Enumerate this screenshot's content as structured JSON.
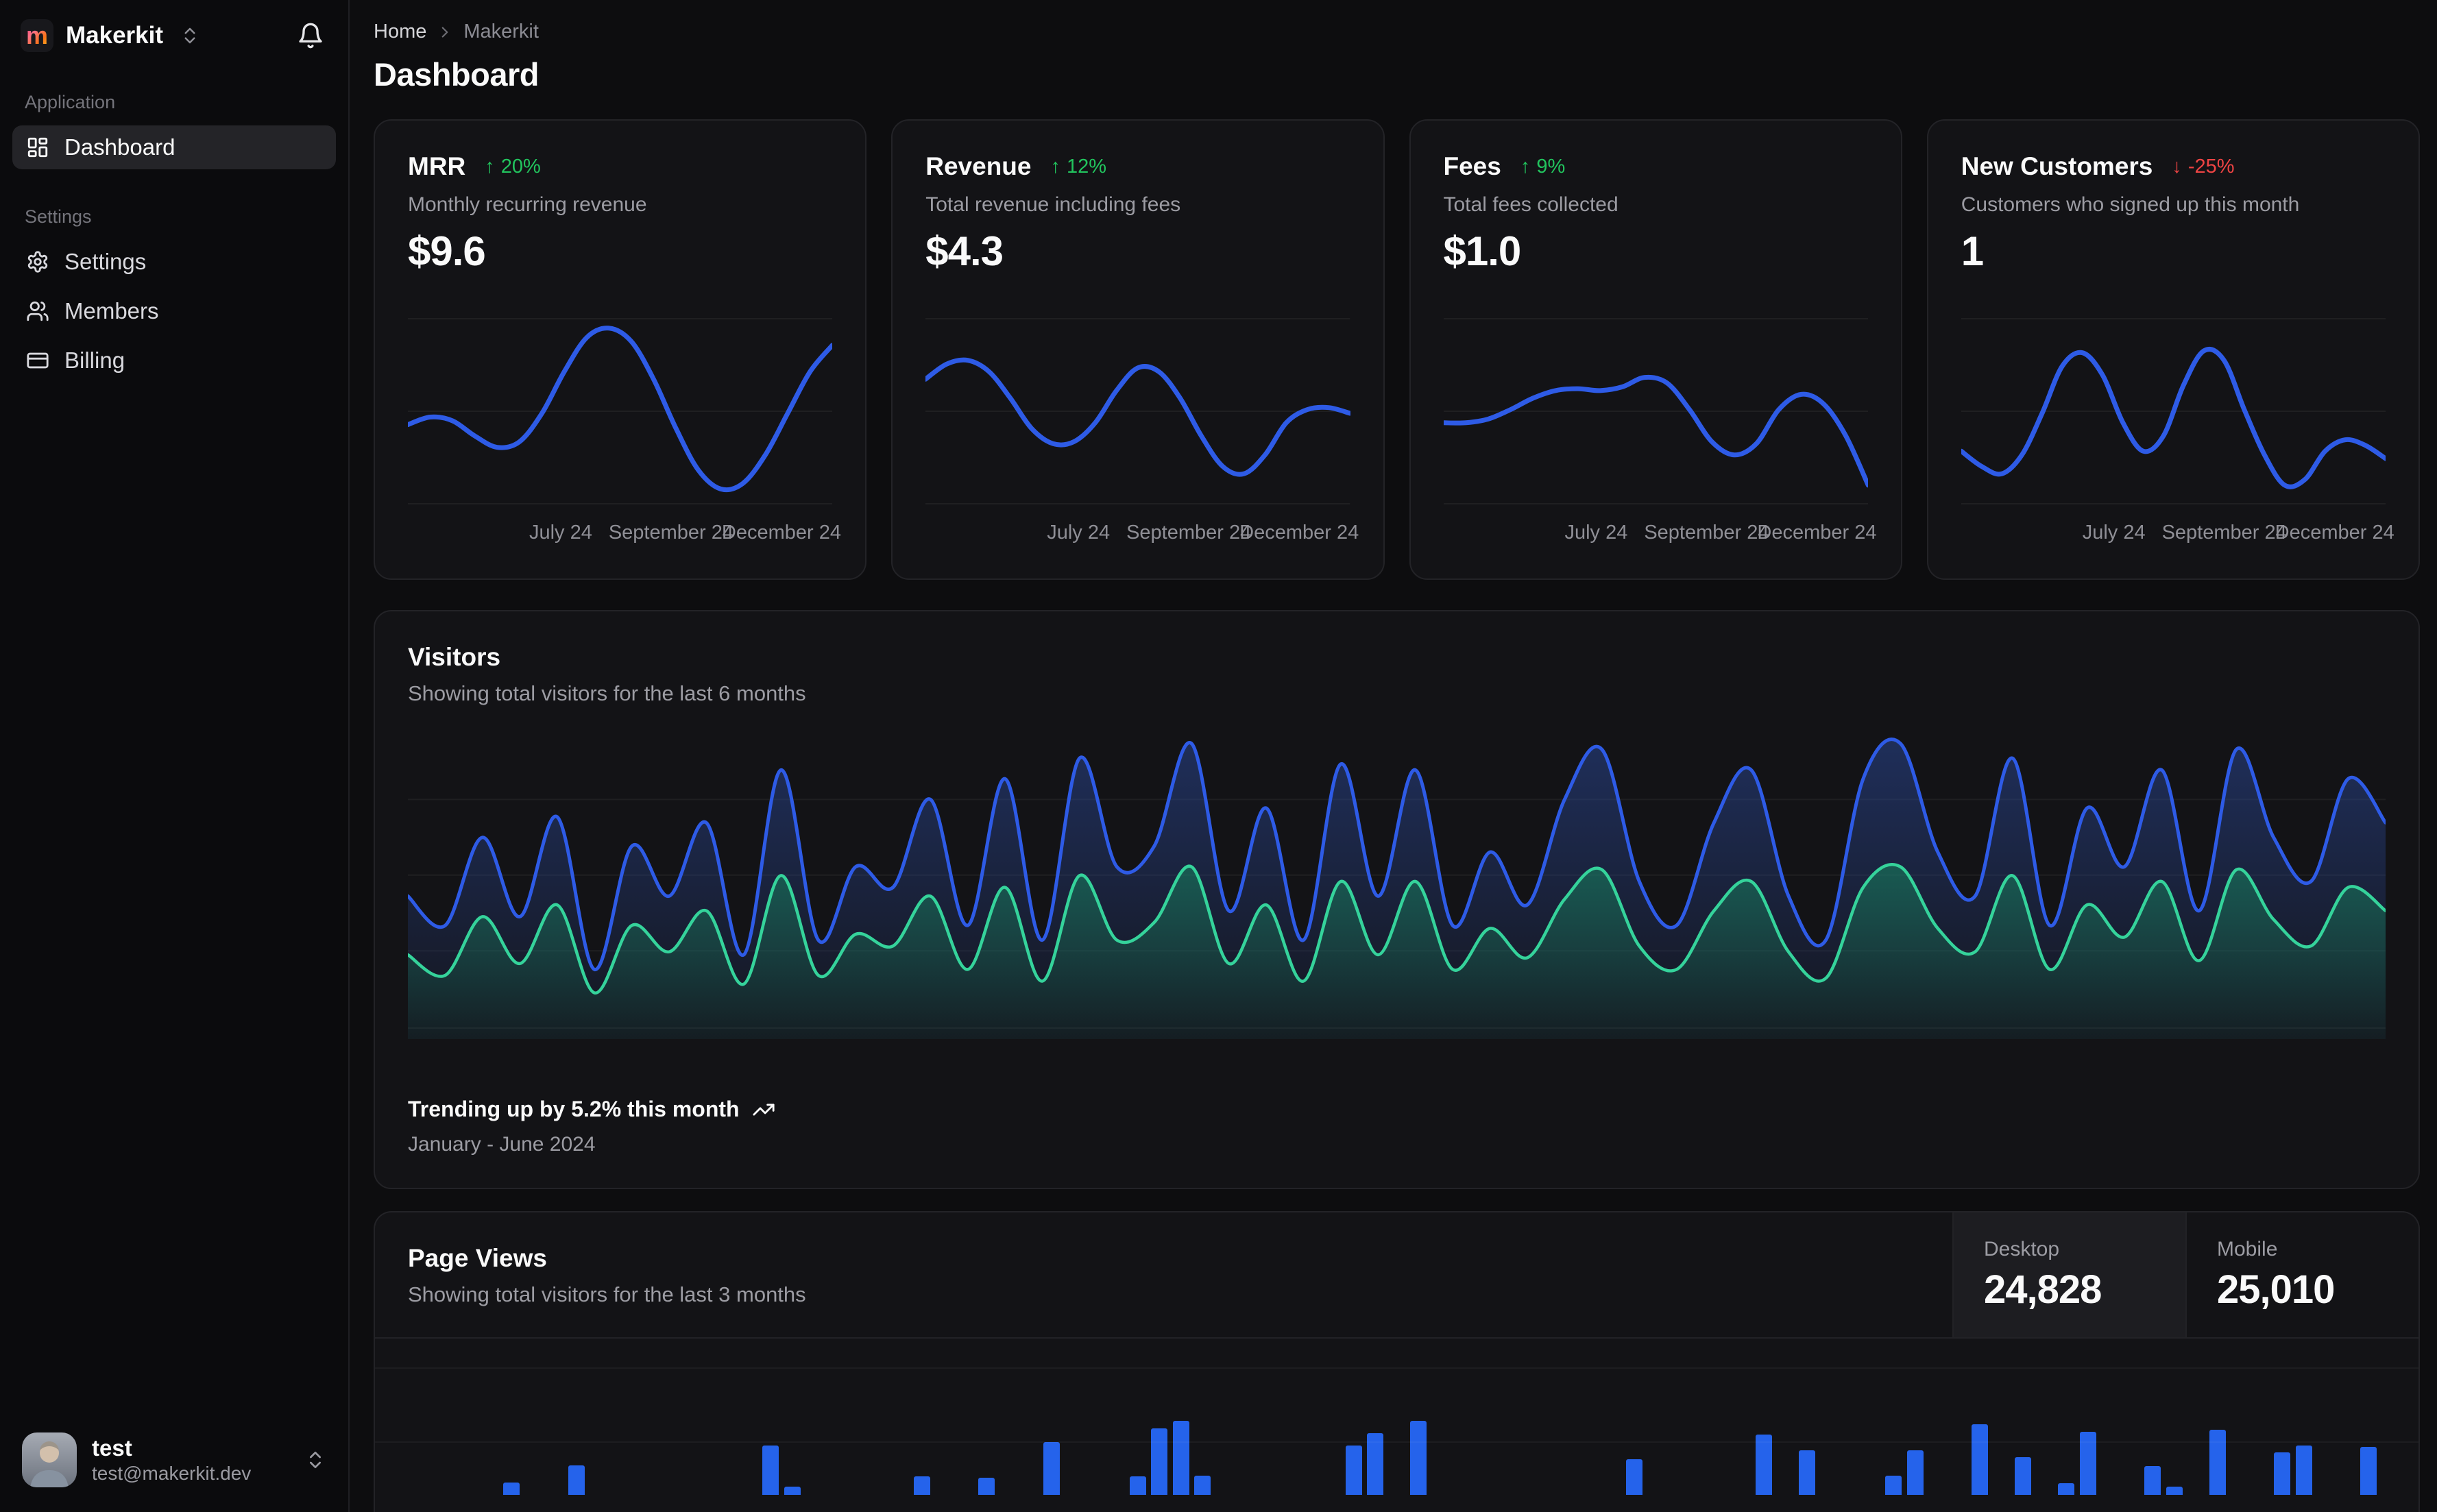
{
  "colors": {
    "chart_blue": "#2e5be6",
    "chart_green": "#35d39b",
    "bar_blue": "#2563eb",
    "badge_up_green": "#22c55e",
    "badge_down_red": "#ef4444",
    "fill_blue": "#2b4a9e",
    "fill_green": "#17875f"
  },
  "sidebar": {
    "brand": "Makerkit",
    "brand_initial": "m",
    "sections": [
      {
        "label": "Application",
        "items": [
          {
            "label": "Dashboard",
            "icon": "layout-dashboard-icon",
            "active": true
          }
        ]
      },
      {
        "label": "Settings",
        "items": [
          {
            "label": "Settings",
            "icon": "gear-icon",
            "active": false
          },
          {
            "label": "Members",
            "icon": "users-icon",
            "active": false
          },
          {
            "label": "Billing",
            "icon": "credit-card-icon",
            "active": false
          }
        ]
      }
    ],
    "user": {
      "name": "test",
      "email": "test@makerkit.dev"
    }
  },
  "breadcrumb": {
    "home": "Home",
    "current": "Makerkit"
  },
  "page_title": "Dashboard",
  "stat_cards": [
    {
      "title": "MRR",
      "direction": "up",
      "badge": "20%",
      "subtitle": "Monthly recurring revenue",
      "value": "$9.6",
      "chart_data": {
        "type": "line",
        "ylim": [
          0,
          100
        ],
        "x_labels": [
          "July 24",
          "September 24",
          "December 24"
        ],
        "values": [
          44,
          48,
          46,
          38,
          32,
          35,
          50,
          72,
          90,
          95,
          88,
          68,
          42,
          20,
          10,
          13,
          28,
          50,
          72,
          86
        ]
      }
    },
    {
      "title": "Revenue",
      "direction": "up",
      "badge": "12%",
      "subtitle": "Total revenue including fees",
      "value": "$4.3",
      "chart_data": {
        "type": "line",
        "ylim": [
          0,
          100
        ],
        "x_labels": [
          "July 24",
          "September 24",
          "December 24"
        ],
        "values": [
          68,
          76,
          78,
          72,
          58,
          42,
          34,
          35,
          45,
          62,
          74,
          72,
          58,
          38,
          22,
          18,
          28,
          45,
          52,
          53,
          50
        ]
      }
    },
    {
      "title": "Fees",
      "direction": "up",
      "badge": "9%",
      "subtitle": "Total fees collected",
      "value": "$1.0",
      "chart_data": {
        "type": "line",
        "ylim": [
          0,
          100
        ],
        "x_labels": [
          "July 24",
          "September 24",
          "December 24"
        ],
        "values": [
          45,
          45,
          47,
          52,
          58,
          62,
          63,
          62,
          64,
          69,
          66,
          52,
          35,
          28,
          34,
          52,
          60,
          55,
          38,
          12
        ]
      }
    },
    {
      "title": "New Customers",
      "direction": "down",
      "badge": "-25%",
      "subtitle": "Customers who signed up this month",
      "value": "1",
      "chart_data": {
        "type": "line",
        "ylim": [
          0,
          100
        ],
        "x_labels": [
          "July 24",
          "September 24",
          "December 24"
        ],
        "values": [
          30,
          22,
          18,
          28,
          50,
          75,
          82,
          70,
          45,
          30,
          38,
          65,
          83,
          78,
          52,
          28,
          12,
          15,
          30,
          36,
          33,
          26
        ]
      }
    }
  ],
  "visitors": {
    "title": "Visitors",
    "subtitle": "Showing total visitors for the last 6 months",
    "trending": "Trending up by 5.2% this month",
    "range": "January - June 2024",
    "chart_data": {
      "type": "area",
      "ylim": [
        0,
        100
      ],
      "legend": "none",
      "grid": "horizontal",
      "series": [
        {
          "name": "Desktop",
          "color": "#2e5be6",
          "values": [
            45,
            35,
            65,
            38,
            72,
            20,
            62,
            45,
            70,
            25,
            88,
            30,
            55,
            48,
            78,
            35,
            85,
            30,
            92,
            55,
            62,
            97,
            40,
            75,
            30,
            90,
            45,
            88,
            35,
            60,
            42,
            78,
            95,
            50,
            35,
            70,
            88,
            45,
            30,
            85,
            97,
            60,
            45,
            92,
            35,
            75,
            55,
            88,
            40,
            95,
            65,
            50,
            85,
            70
          ]
        },
        {
          "name": "Mobile",
          "color": "#35d39b",
          "values": [
            25,
            18,
            38,
            22,
            42,
            12,
            35,
            26,
            40,
            15,
            52,
            18,
            32,
            28,
            45,
            20,
            48,
            16,
            52,
            30,
            36,
            55,
            22,
            42,
            16,
            50,
            25,
            50,
            20,
            34,
            24,
            44,
            54,
            28,
            20,
            40,
            50,
            26,
            17,
            48,
            55,
            34,
            26,
            52,
            20,
            42,
            31,
            50,
            23,
            54,
            37,
            28,
            48,
            40
          ]
        }
      ]
    }
  },
  "page_views": {
    "title": "Page Views",
    "subtitle": "Showing total visitors for the last 3 months",
    "tabs": [
      {
        "label": "Desktop",
        "value": "24,828",
        "active": true
      },
      {
        "label": "Mobile",
        "value": "25,010",
        "active": false
      }
    ],
    "chart_data": {
      "type": "bar",
      "note": "visible bar heights in px, chart clipped at viewport bottom",
      "values": [
        0,
        0,
        0,
        0,
        0,
        18,
        0,
        0,
        43,
        0,
        0,
        0,
        0,
        0,
        0,
        0,
        0,
        72,
        12,
        0,
        0,
        0,
        0,
        0,
        27,
        0,
        0,
        25,
        0,
        0,
        77,
        0,
        0,
        0,
        27,
        97,
        108,
        28,
        0,
        0,
        0,
        0,
        0,
        0,
        72,
        90,
        0,
        108,
        0,
        0,
        0,
        0,
        0,
        0,
        0,
        0,
        0,
        52,
        0,
        0,
        0,
        0,
        0,
        88,
        0,
        65,
        0,
        0,
        0,
        28,
        65,
        0,
        0,
        103,
        0,
        55,
        0,
        17,
        92,
        0,
        0,
        42,
        12,
        0,
        95,
        0,
        0,
        62,
        72,
        0,
        0,
        70,
        0
      ]
    }
  }
}
